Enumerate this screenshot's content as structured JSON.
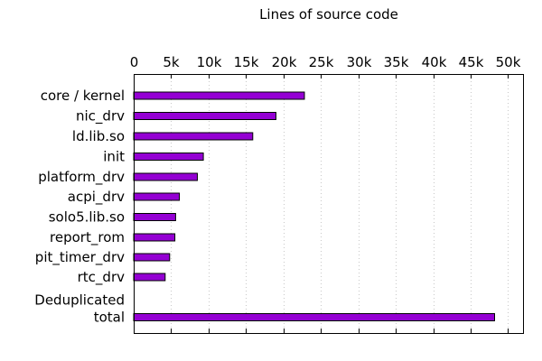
{
  "chart_data": {
    "type": "bar",
    "orientation": "horizontal",
    "title": "Lines of source code",
    "xlabel": "",
    "ylabel": "",
    "xlim": [
      0,
      52000
    ],
    "x_ticks": [
      {
        "value": 0,
        "label": "0"
      },
      {
        "value": 5000,
        "label": "5k"
      },
      {
        "value": 10000,
        "label": "10k"
      },
      {
        "value": 15000,
        "label": "15k"
      },
      {
        "value": 20000,
        "label": "20k"
      },
      {
        "value": 25000,
        "label": "25k"
      },
      {
        "value": 30000,
        "label": "30k"
      },
      {
        "value": 35000,
        "label": "35k"
      },
      {
        "value": 40000,
        "label": "40k"
      },
      {
        "value": 45000,
        "label": "45k"
      },
      {
        "value": 50000,
        "label": "50k"
      }
    ],
    "tick_position": "top",
    "grid": "vertical-dotted",
    "bar_color": "#9400d3",
    "categories": [
      {
        "label": [
          "core / kernel"
        ],
        "value": 22800
      },
      {
        "label": [
          "nic_drv"
        ],
        "value": 19000
      },
      {
        "label": [
          "ld.lib.so"
        ],
        "value": 15900
      },
      {
        "label": [
          "init"
        ],
        "value": 9300
      },
      {
        "label": [
          "platform_drv"
        ],
        "value": 8500
      },
      {
        "label": [
          "acpi_drv"
        ],
        "value": 6100
      },
      {
        "label": [
          "solo5.lib.so"
        ],
        "value": 5600
      },
      {
        "label": [
          "report_rom"
        ],
        "value": 5500
      },
      {
        "label": [
          "pit_timer_drv"
        ],
        "value": 4800
      },
      {
        "label": [
          "rtc_drv"
        ],
        "value": 4200
      },
      {
        "label": [
          "Deduplicated",
          "total"
        ],
        "value": 48200
      }
    ]
  }
}
